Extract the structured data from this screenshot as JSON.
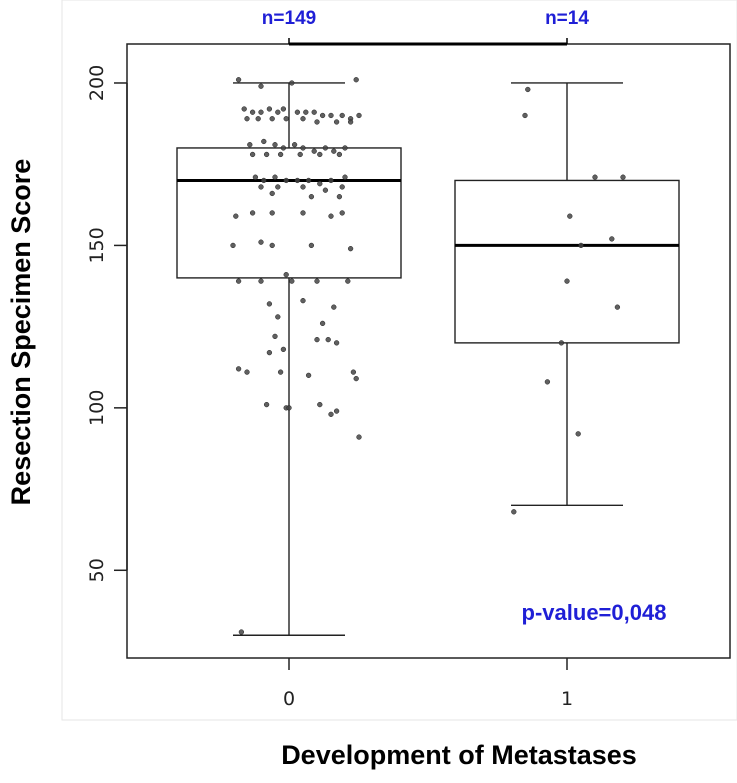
{
  "chart_data": {
    "type": "boxplot",
    "title": "",
    "xlabel": "Development of Metastases",
    "ylabel": "Resection Specimen Score",
    "ylim": [
      23,
      212
    ],
    "yticks": [
      50,
      100,
      150,
      200
    ],
    "categories": [
      "0",
      "1"
    ],
    "n_labels": [
      "n=149",
      "n=14"
    ],
    "annotation": "p-value=0,048",
    "grid": false,
    "boxes": [
      {
        "category": "0",
        "whisker_low": 30,
        "q1": 140,
        "median": 170,
        "q3": 180,
        "whisker_high": 200
      },
      {
        "category": "1",
        "whisker_low": 70,
        "q1": 120,
        "median": 150,
        "q3": 170,
        "whisker_high": 200
      }
    ],
    "points": {
      "0": [
        [
          -0.18,
          201
        ],
        [
          -0.1,
          199
        ],
        [
          0.01,
          200
        ],
        [
          0.24,
          201
        ],
        [
          -0.16,
          192
        ],
        [
          -0.13,
          191
        ],
        [
          -0.1,
          191
        ],
        [
          -0.07,
          192
        ],
        [
          -0.04,
          191
        ],
        [
          -0.02,
          192
        ],
        [
          0.03,
          191
        ],
        [
          0.06,
          191
        ],
        [
          0.09,
          191
        ],
        [
          0.12,
          190
        ],
        [
          0.15,
          190
        ],
        [
          0.19,
          190
        ],
        [
          0.22,
          189
        ],
        [
          0.25,
          190
        ],
        [
          -0.15,
          189
        ],
        [
          -0.11,
          189
        ],
        [
          -0.06,
          189
        ],
        [
          -0.01,
          189
        ],
        [
          0.05,
          189
        ],
        [
          0.1,
          188
        ],
        [
          0.17,
          188
        ],
        [
          0.22,
          188
        ],
        [
          -0.14,
          181
        ],
        [
          -0.09,
          182
        ],
        [
          -0.05,
          181
        ],
        [
          -0.02,
          180
        ],
        [
          0.02,
          181
        ],
        [
          0.05,
          180
        ],
        [
          0.09,
          179
        ],
        [
          0.13,
          180
        ],
        [
          0.16,
          179
        ],
        [
          0.2,
          180
        ],
        [
          -0.13,
          178
        ],
        [
          -0.08,
          178
        ],
        [
          -0.03,
          178
        ],
        [
          0.04,
          178
        ],
        [
          0.11,
          178
        ],
        [
          0.18,
          178
        ],
        [
          -0.12,
          171
        ],
        [
          -0.09,
          170
        ],
        [
          -0.05,
          171
        ],
        [
          -0.01,
          170
        ],
        [
          0.03,
          170
        ],
        [
          0.07,
          170
        ],
        [
          0.11,
          169
        ],
        [
          0.15,
          170
        ],
        [
          0.2,
          171
        ],
        [
          -0.1,
          168
        ],
        [
          -0.04,
          168
        ],
        [
          0.05,
          168
        ],
        [
          0.13,
          167
        ],
        [
          0.19,
          168
        ],
        [
          -0.06,
          166
        ],
        [
          0.08,
          165
        ],
        [
          0.18,
          165
        ],
        [
          -0.19,
          159
        ],
        [
          -0.13,
          160
        ],
        [
          -0.06,
          160
        ],
        [
          0.05,
          160
        ],
        [
          0.15,
          159
        ],
        [
          0.19,
          160
        ],
        [
          -0.2,
          150
        ],
        [
          -0.1,
          151
        ],
        [
          -0.06,
          150
        ],
        [
          0.08,
          150
        ],
        [
          0.22,
          149
        ],
        [
          -0.18,
          139
        ],
        [
          -0.1,
          139
        ],
        [
          -0.01,
          141
        ],
        [
          0.01,
          139
        ],
        [
          0.1,
          139
        ],
        [
          0.21,
          139
        ],
        [
          -0.07,
          132
        ],
        [
          0.05,
          133
        ],
        [
          0.16,
          131
        ],
        [
          -0.04,
          128
        ],
        [
          0.12,
          126
        ],
        [
          -0.05,
          122
        ],
        [
          0.1,
          121
        ],
        [
          0.14,
          121
        ],
        [
          0.17,
          120
        ],
        [
          -0.07,
          117
        ],
        [
          -0.02,
          118
        ],
        [
          -0.18,
          112
        ],
        [
          -0.15,
          111
        ],
        [
          -0.03,
          111
        ],
        [
          0.07,
          110
        ],
        [
          0.23,
          111
        ],
        [
          0.24,
          109
        ],
        [
          -0.08,
          101
        ],
        [
          -0.01,
          100
        ],
        [
          0.0,
          100
        ],
        [
          0.11,
          101
        ],
        [
          0.15,
          98
        ],
        [
          0.17,
          99
        ],
        [
          0.25,
          91
        ],
        [
          -0.17,
          31
        ]
      ],
      "1": [
        [
          -0.14,
          198
        ],
        [
          -0.15,
          190
        ],
        [
          0.1,
          171
        ],
        [
          0.2,
          171
        ],
        [
          0.01,
          159
        ],
        [
          0.16,
          152
        ],
        [
          0.05,
          150
        ],
        [
          0.18,
          131
        ],
        [
          0.0,
          139
        ],
        [
          -0.02,
          120
        ],
        [
          -0.07,
          108
        ],
        [
          0.04,
          92
        ],
        [
          -0.19,
          68
        ]
      ]
    },
    "bracket": {
      "from": "0",
      "to": "1"
    }
  }
}
